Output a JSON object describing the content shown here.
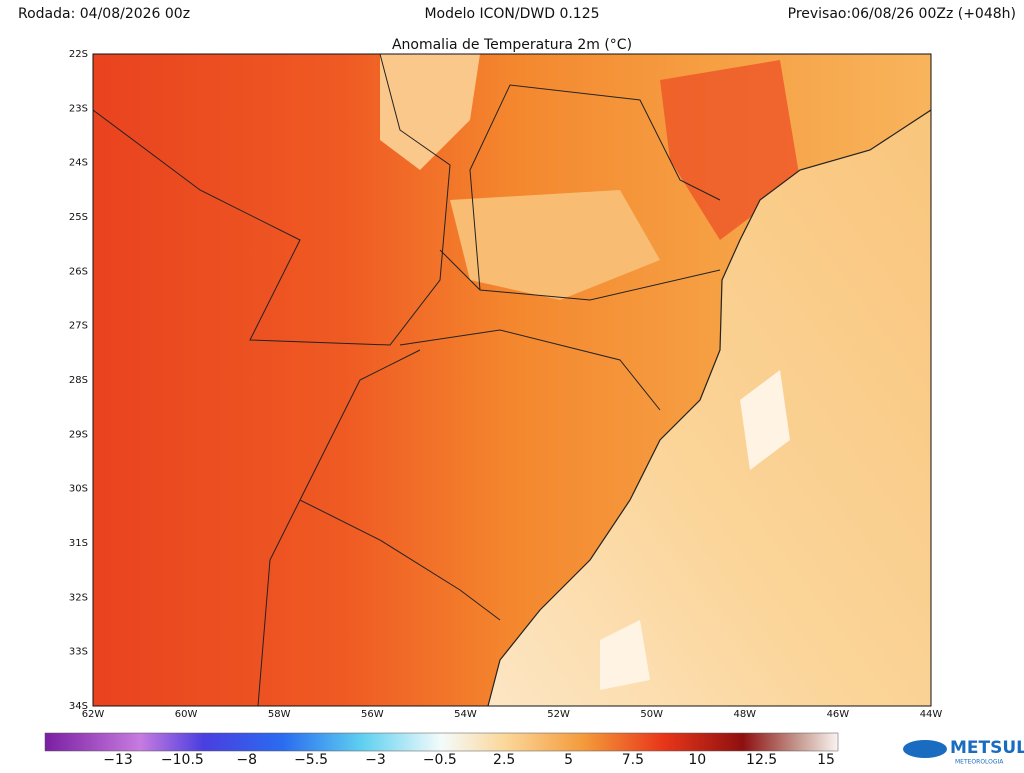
{
  "header": {
    "run": "Rodada: 04/08/2026 00z",
    "model": "Modelo ICON/DWD 0.125",
    "forecast": "Previsao:06/08/26 00Zz (+048h)"
  },
  "map": {
    "title": "Anomalia de Temperatura 2m (°C)",
    "lat_labels": [
      "22S",
      "23S",
      "24S",
      "25S",
      "26S",
      "27S",
      "28S",
      "29S",
      "30S",
      "31S",
      "32S",
      "33S",
      "34S"
    ],
    "lon_labels": [
      "62W",
      "60W",
      "58W",
      "56W",
      "54W",
      "52W",
      "50W",
      "48W",
      "46W",
      "44W"
    ]
  },
  "colorbar": {
    "labels": [
      "−13",
      "−10.5",
      "−8",
      "−5.5",
      "−3",
      "−0.5",
      "2.5",
      "5",
      "7.5",
      "10",
      "12.5",
      "15"
    ]
  },
  "logo": {
    "name": "METSUL",
    "tagline": "METEOROLOGIA"
  }
}
